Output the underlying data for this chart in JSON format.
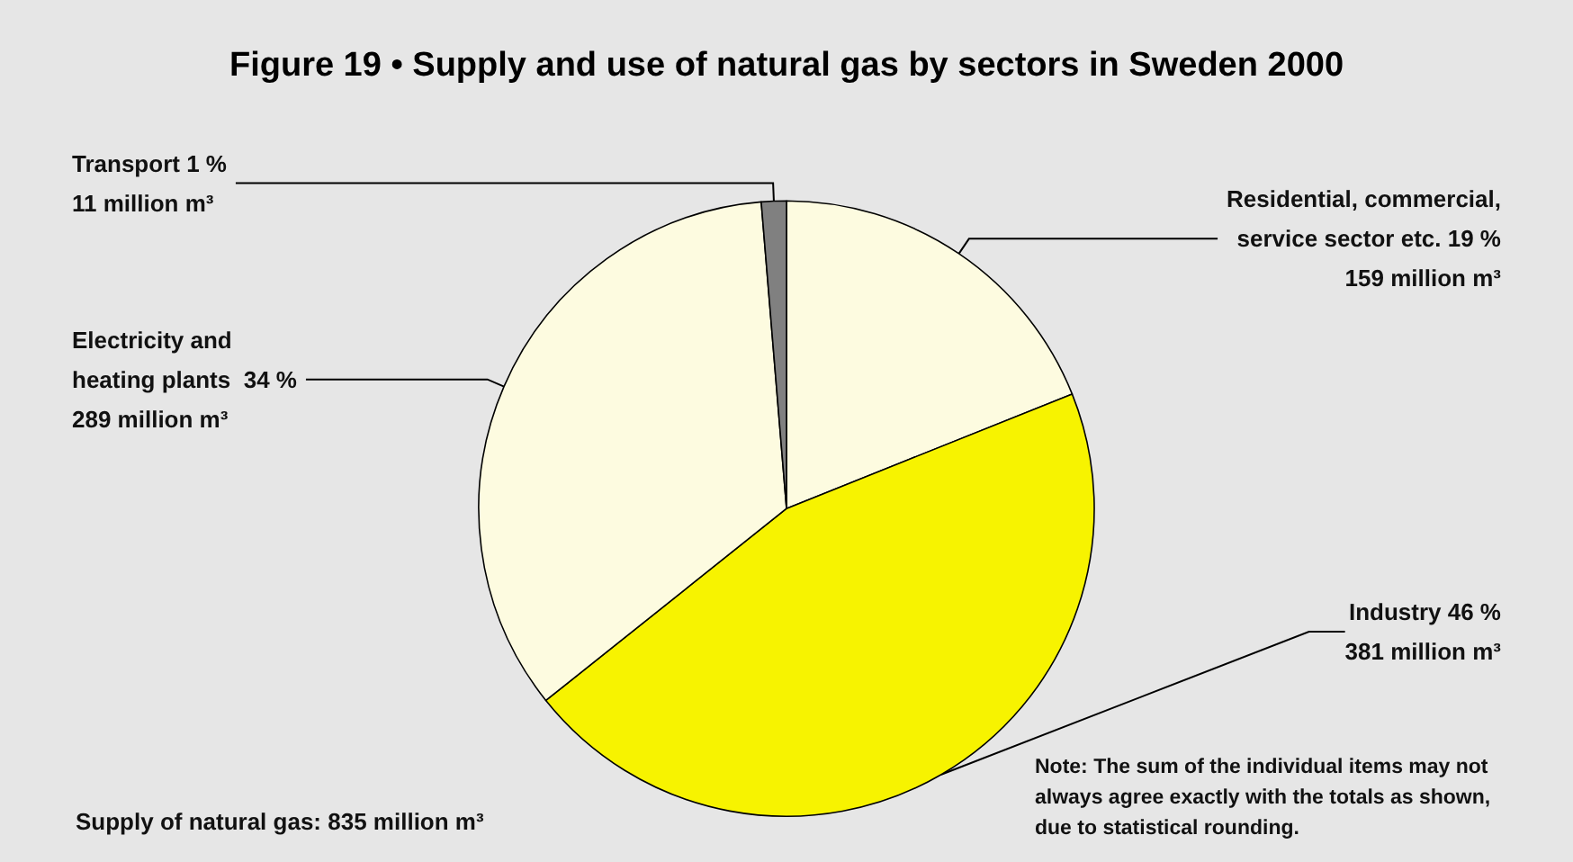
{
  "chart_data": {
    "type": "pie",
    "title": "Figure 19 • Supply and use of natural gas by sectors in Sweden 2000",
    "categories": [
      "Residential, commercial,\nservice sector etc. 19 %",
      "Industry 46 %",
      "Electricity and\nheating plants  34 %",
      "Transport 1 %"
    ],
    "values": [
      159,
      381,
      289,
      11
    ],
    "value_labels": [
      "159 million m³",
      "381 million m³",
      "289 million m³",
      "11 million m³"
    ],
    "colors": [
      "#fdfbe0",
      "#f7f300",
      "#fdfbe0",
      "#808080"
    ],
    "legend": false,
    "annotations": [
      "Supply of natural gas: 835 million m³",
      "Note: The sum of the individual items may not\nalways agree exactly with the totals as shown,\ndue to statistical rounding."
    ]
  }
}
